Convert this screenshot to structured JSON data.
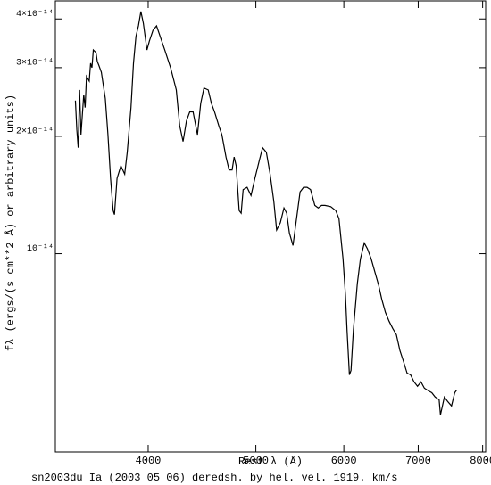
{
  "chart_data": {
    "type": "line",
    "x_label": "Rest λ (Å)",
    "y_label": "fλ (ergs/(s cm**2 Å) or arbitrary units)",
    "caption": "sn2003du Ia (2003 05 06) deredsh. by hel. vel.  1919. km/s",
    "color": "#000000",
    "x_log": true,
    "y_log": true,
    "xlim": [
      3300,
      8050
    ],
    "ylim": [
      3.1e-15,
      4.45e-14
    ],
    "xticks": [
      4000,
      5000,
      6000,
      7000,
      8000
    ],
    "yticks": [
      {
        "value": 1e-14,
        "label": "10⁻¹⁴"
      },
      {
        "value": 2e-14,
        "label": "2×10⁻¹⁴"
      },
      {
        "value": 3e-14,
        "label": "3×10⁻¹⁴"
      },
      {
        "value": 4e-14,
        "label": "4×10⁻¹⁴"
      }
    ],
    "x": [
      3440,
      3450,
      3460,
      3470,
      3480,
      3500,
      3510,
      3520,
      3540,
      3550,
      3560,
      3570,
      3590,
      3600,
      3610,
      3630,
      3660,
      3680,
      3700,
      3720,
      3730,
      3750,
      3780,
      3810,
      3830,
      3860,
      3880,
      3900,
      3920,
      3940,
      3960,
      3990,
      4010,
      4040,
      4070,
      4100,
      4140,
      4190,
      4240,
      4270,
      4300,
      4330,
      4360,
      4390,
      4430,
      4460,
      4490,
      4530,
      4560,
      4590,
      4630,
      4660,
      4700,
      4730,
      4760,
      4780,
      4800,
      4830,
      4850,
      4870,
      4910,
      4950,
      4990,
      5040,
      5070,
      5110,
      5150,
      5190,
      5220,
      5260,
      5300,
      5330,
      5360,
      5400,
      5440,
      5480,
      5520,
      5560,
      5600,
      5650,
      5690,
      5730,
      5770,
      5840,
      5900,
      5940,
      5990,
      6020,
      6040,
      6070,
      6090,
      6120,
      6170,
      6210,
      6260,
      6300,
      6350,
      6400,
      6450,
      6490,
      6540,
      6590,
      6640,
      6690,
      6740,
      6790,
      6840,
      6890,
      6940,
      6990,
      7040,
      7090,
      7150,
      7200,
      7250,
      7310,
      7330,
      7390,
      7440,
      7500,
      7550,
      7580
    ],
    "values": [
      2.47e-14,
      2.08e-14,
      1.87e-14,
      2.63e-14,
      2.02e-14,
      2.56e-14,
      2.37e-14,
      2.85e-14,
      2.77e-14,
      3.08e-14,
      3e-14,
      3.33e-14,
      3.28e-14,
      3.11e-14,
      3.05e-14,
      2.92e-14,
      2.5e-14,
      2.02e-14,
      1.56e-14,
      1.29e-14,
      1.26e-14,
      1.56e-14,
      1.68e-14,
      1.6e-14,
      1.82e-14,
      2.37e-14,
      3.08e-14,
      3.61e-14,
      3.84e-14,
      4.18e-14,
      3.9e-14,
      3.33e-14,
      3.51e-14,
      3.74e-14,
      3.84e-14,
      3.61e-14,
      3.33e-14,
      3e-14,
      2.63e-14,
      2.13e-14,
      1.94e-14,
      2.19e-14,
      2.31e-14,
      2.31e-14,
      2.02e-14,
      2.43e-14,
      2.66e-14,
      2.63e-14,
      2.43e-14,
      2.31e-14,
      2.13e-14,
      2.02e-14,
      1.77e-14,
      1.64e-14,
      1.64e-14,
      1.77e-14,
      1.68e-14,
      1.29e-14,
      1.27e-14,
      1.46e-14,
      1.48e-14,
      1.41e-14,
      1.56e-14,
      1.75e-14,
      1.87e-14,
      1.82e-14,
      1.6e-14,
      1.36e-14,
      1.15e-14,
      1.2e-14,
      1.31e-14,
      1.27e-14,
      1.13e-14,
      1.05e-14,
      1.23e-14,
      1.44e-14,
      1.48e-14,
      1.48e-14,
      1.46e-14,
      1.33e-14,
      1.31e-14,
      1.33e-14,
      1.33e-14,
      1.32e-14,
      1.29e-14,
      1.23e-14,
      9.7e-15,
      7.85e-15,
      6.37e-15,
      4.89e-15,
      5.02e-15,
      6.37e-15,
      8.37e-15,
      9.7e-15,
      1.065e-14,
      1.03e-14,
      9.7e-15,
      8.96e-15,
      8.28e-15,
      7.65e-15,
      7.07e-15,
      6.71e-15,
      6.43e-15,
      6.2e-15,
      5.64e-15,
      5.29e-15,
      4.94e-15,
      4.89e-15,
      4.69e-15,
      4.57e-15,
      4.69e-15,
      4.52e-15,
      4.45e-15,
      4.4e-15,
      4.29e-15,
      4.22e-15,
      3.86e-15,
      4.29e-15,
      4.18e-15,
      4.07e-15,
      4.4e-15,
      4.47e-15
    ]
  }
}
